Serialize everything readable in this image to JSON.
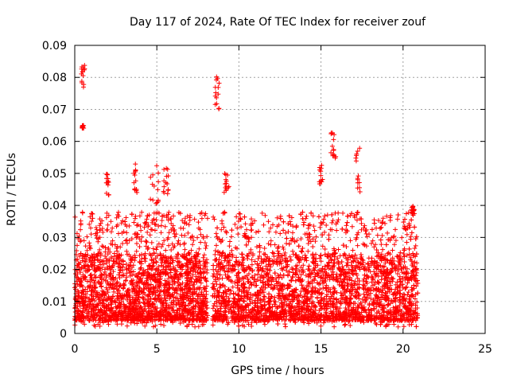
{
  "chart_data": {
    "type": "scatter",
    "title": "Day 117 of 2024, Rate Of TEC Index for receiver zouf",
    "xlabel": "GPS time / hours",
    "ylabel": "ROTI / TECUs",
    "xlim": [
      0,
      25
    ],
    "ylim": [
      0,
      0.09
    ],
    "xticks": [
      "0",
      "5",
      "10",
      "15",
      "20",
      "25"
    ],
    "yticks": [
      "0",
      "0.01",
      "0.02",
      "0.03",
      "0.04",
      "0.05",
      "0.06",
      "0.07",
      "0.08",
      "0.09"
    ],
    "grid": true,
    "marker": "plus",
    "series_color": "#ff0000",
    "coverage_hours": [
      [
        0.0,
        8.1
      ],
      [
        8.4,
        20.9
      ]
    ],
    "typical_range": [
      0.004,
      0.025
    ],
    "clusters": [
      {
        "x": [
          0.4,
          0.6
        ],
        "y": [
          0.076,
          0.084
        ]
      },
      {
        "x": [
          0.45,
          0.55
        ],
        "y": [
          0.064,
          0.065
        ]
      },
      {
        "x": [
          1.9,
          2.1
        ],
        "y": [
          0.043,
          0.05
        ]
      },
      {
        "x": [
          3.6,
          3.8
        ],
        "y": [
          0.044,
          0.054
        ]
      },
      {
        "x": [
          4.6,
          5.1
        ],
        "y": [
          0.04,
          0.054
        ]
      },
      {
        "x": [
          5.4,
          5.7
        ],
        "y": [
          0.043,
          0.052
        ]
      },
      {
        "x": [
          8.5,
          8.8
        ],
        "y": [
          0.07,
          0.081
        ]
      },
      {
        "x": [
          9.1,
          9.4
        ],
        "y": [
          0.044,
          0.051
        ]
      },
      {
        "x": [
          14.9,
          15.1
        ],
        "y": [
          0.046,
          0.053
        ]
      },
      {
        "x": [
          15.6,
          15.9
        ],
        "y": [
          0.054,
          0.063
        ]
      },
      {
        "x": [
          17.1,
          17.4
        ],
        "y": [
          0.043,
          0.058
        ]
      },
      {
        "x": [
          20.5,
          20.7
        ],
        "y": [
          0.037,
          0.04
        ]
      }
    ]
  }
}
